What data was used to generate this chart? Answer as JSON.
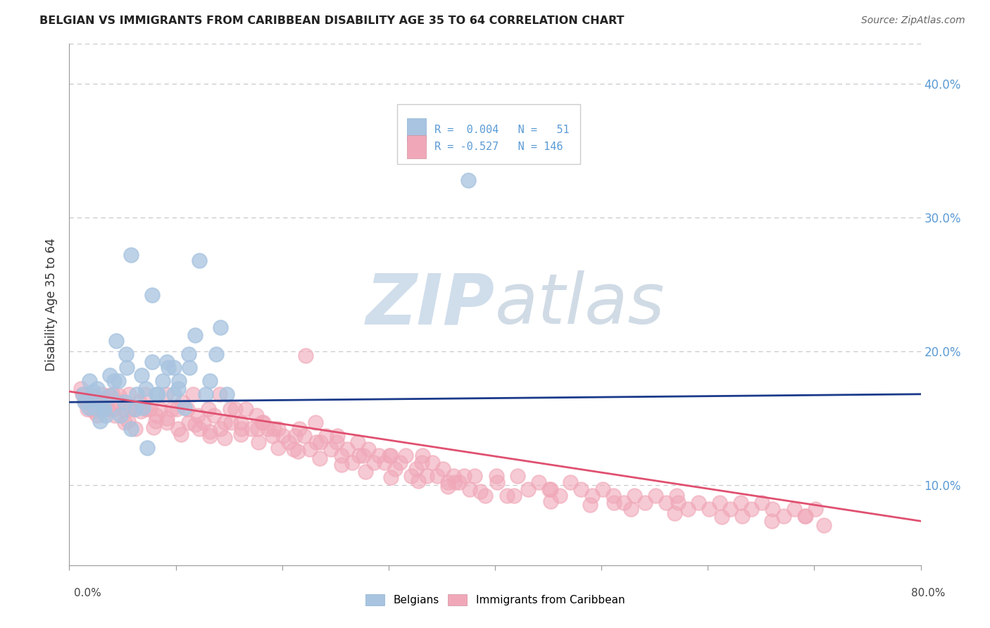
{
  "title": "BELGIAN VS IMMIGRANTS FROM CARIBBEAN DISABILITY AGE 35 TO 64 CORRELATION CHART",
  "source": "Source: ZipAtlas.com",
  "ylabel": "Disability Age 35 to 64",
  "xmin": 0.0,
  "xmax": 0.8,
  "ymin": 0.04,
  "ymax": 0.43,
  "ytick_vals": [
    0.1,
    0.2,
    0.3,
    0.4
  ],
  "ytick_labels": [
    "10.0%",
    "20.0%",
    "30.0%",
    "40.0%"
  ],
  "belgians_color": "#a8c4e0",
  "caribbean_color": "#f0a8b8",
  "trend_belgian_color": "#1a3a8a",
  "trend_caribbean_color": "#e05070",
  "grid_color": "#c8c8d0",
  "right_tick_color": "#5b9bd5",
  "watermark_color": "#c8d8e8",
  "legend_text_color": "#5b9bd5",
  "belgians_scatter": [
    [
      0.018,
      0.158
    ],
    [
      0.022,
      0.17
    ],
    [
      0.028,
      0.162
    ],
    [
      0.032,
      0.157
    ],
    [
      0.038,
      0.182
    ],
    [
      0.042,
      0.178
    ],
    [
      0.048,
      0.152
    ],
    [
      0.052,
      0.162
    ],
    [
      0.058,
      0.142
    ],
    [
      0.062,
      0.157
    ],
    [
      0.068,
      0.182
    ],
    [
      0.072,
      0.172
    ],
    [
      0.078,
      0.192
    ],
    [
      0.082,
      0.168
    ],
    [
      0.088,
      0.178
    ],
    [
      0.092,
      0.192
    ],
    [
      0.098,
      0.188
    ],
    [
      0.102,
      0.172
    ],
    [
      0.108,
      0.158
    ],
    [
      0.112,
      0.198
    ],
    [
      0.118,
      0.212
    ],
    [
      0.122,
      0.268
    ],
    [
      0.128,
      0.168
    ],
    [
      0.132,
      0.178
    ],
    [
      0.138,
      0.198
    ],
    [
      0.142,
      0.218
    ],
    [
      0.013,
      0.168
    ],
    [
      0.019,
      0.178
    ],
    [
      0.024,
      0.158
    ],
    [
      0.029,
      0.148
    ],
    [
      0.014,
      0.162
    ],
    [
      0.026,
      0.172
    ],
    [
      0.034,
      0.152
    ],
    [
      0.039,
      0.167
    ],
    [
      0.044,
      0.208
    ],
    [
      0.054,
      0.188
    ],
    [
      0.063,
      0.168
    ],
    [
      0.073,
      0.128
    ],
    [
      0.083,
      0.168
    ],
    [
      0.093,
      0.188
    ],
    [
      0.103,
      0.178
    ],
    [
      0.113,
      0.188
    ],
    [
      0.058,
      0.272
    ],
    [
      0.078,
      0.242
    ],
    [
      0.098,
      0.168
    ],
    [
      0.033,
      0.157
    ],
    [
      0.046,
      0.178
    ],
    [
      0.069,
      0.158
    ],
    [
      0.148,
      0.168
    ],
    [
      0.053,
      0.198
    ],
    [
      0.375,
      0.328
    ]
  ],
  "caribbean_scatter": [
    [
      0.012,
      0.168
    ],
    [
      0.016,
      0.162
    ],
    [
      0.021,
      0.157
    ],
    [
      0.026,
      0.152
    ],
    [
      0.031,
      0.168
    ],
    [
      0.036,
      0.157
    ],
    [
      0.041,
      0.168
    ],
    [
      0.046,
      0.162
    ],
    [
      0.051,
      0.157
    ],
    [
      0.056,
      0.168
    ],
    [
      0.061,
      0.157
    ],
    [
      0.066,
      0.162
    ],
    [
      0.071,
      0.168
    ],
    [
      0.076,
      0.157
    ],
    [
      0.081,
      0.148
    ],
    [
      0.086,
      0.157
    ],
    [
      0.091,
      0.168
    ],
    [
      0.096,
      0.157
    ],
    [
      0.101,
      0.157
    ],
    [
      0.106,
      0.162
    ],
    [
      0.111,
      0.157
    ],
    [
      0.116,
      0.168
    ],
    [
      0.121,
      0.152
    ],
    [
      0.126,
      0.147
    ],
    [
      0.131,
      0.157
    ],
    [
      0.136,
      0.152
    ],
    [
      0.141,
      0.168
    ],
    [
      0.146,
      0.147
    ],
    [
      0.151,
      0.157
    ],
    [
      0.156,
      0.157
    ],
    [
      0.161,
      0.147
    ],
    [
      0.166,
      0.157
    ],
    [
      0.171,
      0.142
    ],
    [
      0.176,
      0.152
    ],
    [
      0.181,
      0.147
    ],
    [
      0.186,
      0.142
    ],
    [
      0.191,
      0.137
    ],
    [
      0.196,
      0.142
    ],
    [
      0.201,
      0.137
    ],
    [
      0.206,
      0.132
    ],
    [
      0.211,
      0.127
    ],
    [
      0.216,
      0.142
    ],
    [
      0.221,
      0.137
    ],
    [
      0.226,
      0.127
    ],
    [
      0.231,
      0.147
    ],
    [
      0.236,
      0.132
    ],
    [
      0.241,
      0.137
    ],
    [
      0.246,
      0.127
    ],
    [
      0.251,
      0.132
    ],
    [
      0.256,
      0.122
    ],
    [
      0.261,
      0.127
    ],
    [
      0.266,
      0.117
    ],
    [
      0.271,
      0.132
    ],
    [
      0.276,
      0.122
    ],
    [
      0.281,
      0.127
    ],
    [
      0.286,
      0.117
    ],
    [
      0.291,
      0.122
    ],
    [
      0.296,
      0.117
    ],
    [
      0.301,
      0.122
    ],
    [
      0.306,
      0.112
    ],
    [
      0.311,
      0.117
    ],
    [
      0.316,
      0.122
    ],
    [
      0.321,
      0.107
    ],
    [
      0.326,
      0.112
    ],
    [
      0.331,
      0.117
    ],
    [
      0.336,
      0.107
    ],
    [
      0.341,
      0.117
    ],
    [
      0.346,
      0.107
    ],
    [
      0.351,
      0.112
    ],
    [
      0.356,
      0.102
    ],
    [
      0.361,
      0.107
    ],
    [
      0.366,
      0.102
    ],
    [
      0.371,
      0.107
    ],
    [
      0.376,
      0.097
    ],
    [
      0.381,
      0.107
    ],
    [
      0.391,
      0.092
    ],
    [
      0.401,
      0.107
    ],
    [
      0.411,
      0.092
    ],
    [
      0.421,
      0.107
    ],
    [
      0.431,
      0.097
    ],
    [
      0.441,
      0.102
    ],
    [
      0.451,
      0.097
    ],
    [
      0.461,
      0.092
    ],
    [
      0.471,
      0.102
    ],
    [
      0.481,
      0.097
    ],
    [
      0.491,
      0.092
    ],
    [
      0.501,
      0.097
    ],
    [
      0.511,
      0.092
    ],
    [
      0.521,
      0.087
    ],
    [
      0.531,
      0.092
    ],
    [
      0.541,
      0.087
    ],
    [
      0.551,
      0.092
    ],
    [
      0.561,
      0.087
    ],
    [
      0.571,
      0.092
    ],
    [
      0.581,
      0.082
    ],
    [
      0.591,
      0.087
    ],
    [
      0.601,
      0.082
    ],
    [
      0.611,
      0.087
    ],
    [
      0.621,
      0.082
    ],
    [
      0.631,
      0.087
    ],
    [
      0.641,
      0.082
    ],
    [
      0.651,
      0.087
    ],
    [
      0.661,
      0.082
    ],
    [
      0.671,
      0.077
    ],
    [
      0.681,
      0.082
    ],
    [
      0.691,
      0.077
    ],
    [
      0.701,
      0.082
    ],
    [
      0.011,
      0.172
    ],
    [
      0.017,
      0.157
    ],
    [
      0.022,
      0.167
    ],
    [
      0.027,
      0.162
    ],
    [
      0.032,
      0.157
    ],
    [
      0.037,
      0.167
    ],
    [
      0.042,
      0.157
    ],
    [
      0.047,
      0.167
    ],
    [
      0.052,
      0.147
    ],
    [
      0.057,
      0.157
    ],
    [
      0.062,
      0.142
    ],
    [
      0.072,
      0.157
    ],
    [
      0.082,
      0.152
    ],
    [
      0.092,
      0.147
    ],
    [
      0.102,
      0.142
    ],
    [
      0.112,
      0.147
    ],
    [
      0.122,
      0.142
    ],
    [
      0.132,
      0.137
    ],
    [
      0.142,
      0.142
    ],
    [
      0.152,
      0.147
    ],
    [
      0.162,
      0.142
    ],
    [
      0.177,
      0.142
    ],
    [
      0.192,
      0.142
    ],
    [
      0.212,
      0.137
    ],
    [
      0.232,
      0.132
    ],
    [
      0.252,
      0.137
    ],
    [
      0.272,
      0.122
    ],
    [
      0.302,
      0.122
    ],
    [
      0.332,
      0.122
    ],
    [
      0.362,
      0.102
    ],
    [
      0.402,
      0.102
    ],
    [
      0.452,
      0.097
    ],
    [
      0.512,
      0.087
    ],
    [
      0.572,
      0.087
    ],
    [
      0.632,
      0.077
    ],
    [
      0.692,
      0.077
    ],
    [
      0.222,
      0.197
    ],
    [
      0.182,
      0.147
    ],
    [
      0.016,
      0.162
    ],
    [
      0.023,
      0.155
    ],
    [
      0.031,
      0.16
    ],
    [
      0.043,
      0.152
    ],
    [
      0.055,
      0.148
    ],
    [
      0.067,
      0.155
    ],
    [
      0.079,
      0.143
    ],
    [
      0.092,
      0.15
    ],
    [
      0.105,
      0.138
    ],
    [
      0.118,
      0.145
    ],
    [
      0.132,
      0.14
    ],
    [
      0.146,
      0.135
    ],
    [
      0.161,
      0.138
    ],
    [
      0.178,
      0.132
    ],
    [
      0.196,
      0.128
    ],
    [
      0.215,
      0.125
    ],
    [
      0.235,
      0.12
    ],
    [
      0.256,
      0.115
    ],
    [
      0.278,
      0.11
    ],
    [
      0.302,
      0.106
    ],
    [
      0.328,
      0.103
    ],
    [
      0.356,
      0.099
    ],
    [
      0.386,
      0.095
    ],
    [
      0.418,
      0.092
    ],
    [
      0.452,
      0.088
    ],
    [
      0.489,
      0.085
    ],
    [
      0.528,
      0.082
    ],
    [
      0.569,
      0.079
    ],
    [
      0.613,
      0.076
    ],
    [
      0.66,
      0.073
    ],
    [
      0.709,
      0.07
    ]
  ],
  "belgian_trend_x": [
    0.0,
    0.8
  ],
  "belgian_trend_y": [
    0.162,
    0.168
  ],
  "caribbean_trend_x": [
    0.0,
    0.8
  ],
  "caribbean_trend_y": [
    0.17,
    0.073
  ]
}
